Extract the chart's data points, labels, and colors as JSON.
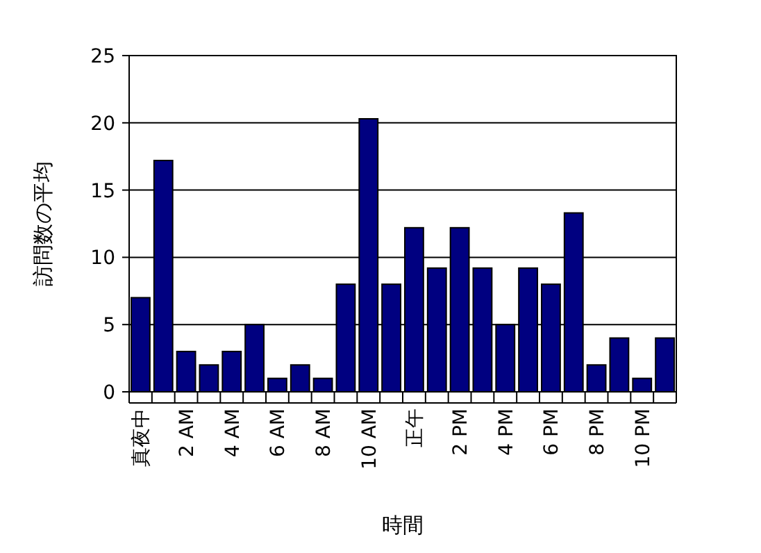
{
  "chart_data": {
    "type": "bar",
    "xlabel": "時間",
    "ylabel": "訪問数の平均",
    "categories": [
      "真夜中",
      null,
      "2 AM",
      null,
      "4 AM",
      null,
      "6 AM",
      null,
      "8 AM",
      null,
      "10 AM",
      null,
      "正午",
      null,
      "2 PM",
      null,
      "4 PM",
      null,
      "6 PM",
      null,
      "8 PM",
      null,
      "10 PM",
      null
    ],
    "values": [
      7,
      17.2,
      3,
      2,
      3,
      5,
      1,
      2,
      1,
      8,
      20.3,
      8,
      12.2,
      9.2,
      12.2,
      9.2,
      5,
      9.2,
      8,
      13.3,
      2,
      4,
      1,
      4
    ],
    "color": "#000080",
    "ylim": [
      0,
      25
    ],
    "yticks": [
      0,
      5,
      10,
      15,
      20,
      25
    ],
    "grid": "y"
  }
}
